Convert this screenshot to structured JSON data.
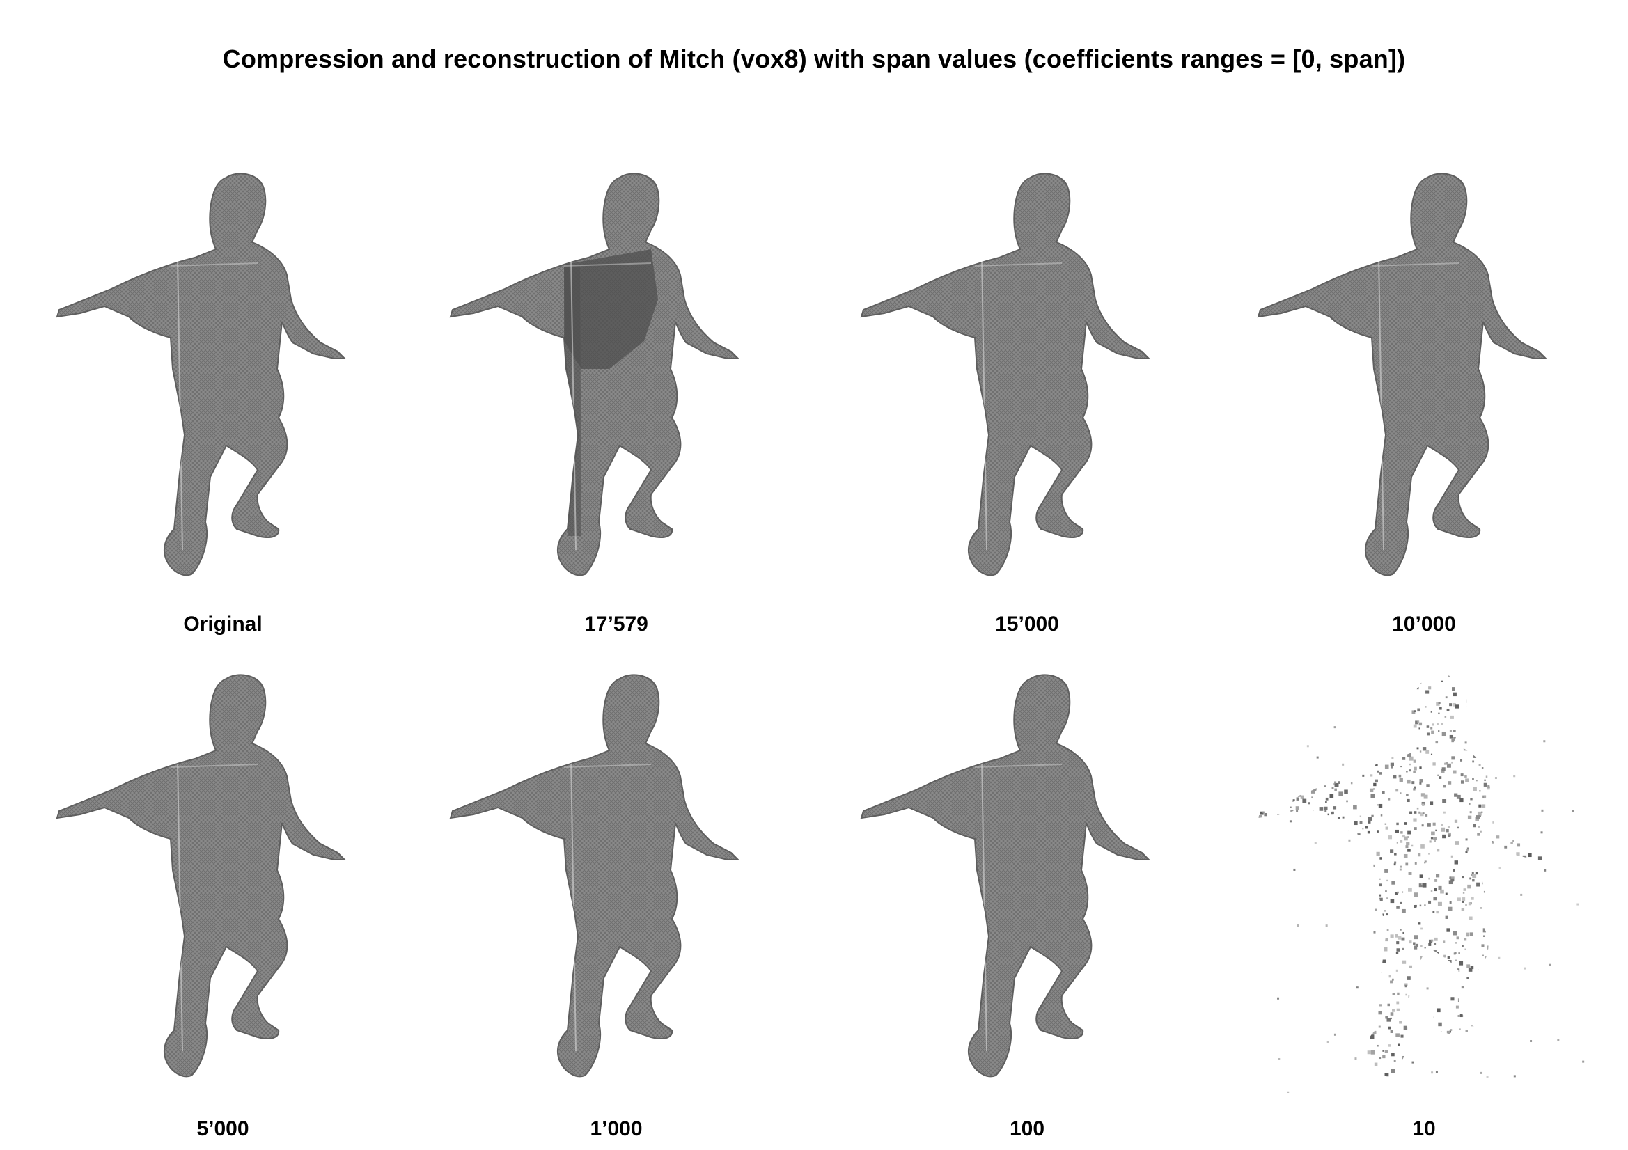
{
  "figure": {
    "title": "Compression and reconstruction of Mitch (vox8) with span values (coefficients ranges = [0, span])"
  },
  "panels": [
    {
      "label": "Original",
      "style": "solid"
    },
    {
      "label": "17’579",
      "style": "darktorso"
    },
    {
      "label": "15’000",
      "style": "solid"
    },
    {
      "label": "10’000",
      "style": "solid"
    },
    {
      "label": "5’000",
      "style": "solid"
    },
    {
      "label": "1’000",
      "style": "solid"
    },
    {
      "label": "100",
      "style": "solid"
    },
    {
      "label": "10",
      "style": "sparse"
    }
  ]
}
